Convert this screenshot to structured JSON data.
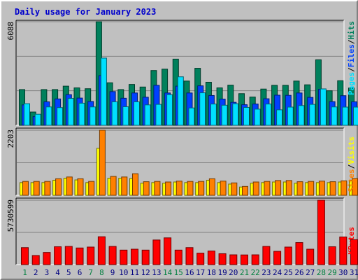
{
  "title": "Daily usage for January 2023",
  "colors": {
    "title": "#0000cc",
    "hits": "#00805c",
    "files": "#0040ff",
    "pages": "#00e0ff",
    "visits": "#ffff00",
    "sites": "#ff8000",
    "kbytes": "#ff0000",
    "weekday_label": "#000080",
    "weekend_label": "#008040",
    "grid": "#808080",
    "panel_bg": "#c0c0c0"
  },
  "side_labels": {
    "pages": "Pages",
    "files": "Files",
    "hits": "Hits",
    "sep": "/",
    "sites": "Sites",
    "visits": "Visits",
    "kbytes": "KBytes"
  },
  "chart_data": [
    {
      "type": "bar",
      "name": "hits-files-pages",
      "max_label": "6088",
      "ylim": [
        0,
        6088
      ],
      "categories": [
        "1",
        "2",
        "3",
        "4",
        "5",
        "6",
        "7",
        "8",
        "9",
        "10",
        "11",
        "12",
        "13",
        "14",
        "15",
        "16",
        "17",
        "18",
        "19",
        "20",
        "21",
        "22",
        "23",
        "24",
        "25",
        "26",
        "27",
        "28",
        "29",
        "30",
        "31"
      ],
      "weekend_days": [
        "1",
        "7",
        "8",
        "14",
        "15",
        "21",
        "22",
        "28",
        "29"
      ],
      "series": [
        {
          "name": "Hits",
          "values": [
            2100,
            780,
            2100,
            2100,
            2300,
            2200,
            2150,
            6088,
            2500,
            2100,
            2400,
            2250,
            3220,
            3300,
            3890,
            2600,
            3350,
            2530,
            2200,
            2360,
            1860,
            1660,
            2130,
            2350,
            2350,
            2600,
            2380,
            3850,
            2030,
            2620,
            2190
          ]
        },
        {
          "name": "Files",
          "values": [
            1200,
            510,
            1380,
            1550,
            1800,
            1600,
            1400,
            2920,
            1980,
            1590,
            1900,
            1650,
            2350,
            1900,
            2300,
            1900,
            2320,
            1750,
            1540,
            1350,
            1210,
            1250,
            1560,
            1770,
            1760,
            1900,
            1640,
            2110,
            1390,
            1740,
            1380
          ]
        },
        {
          "name": "Pages",
          "values": [
            1270,
            650,
            1080,
            1040,
            1580,
            1300,
            1080,
            3950,
            1380,
            1090,
            1380,
            1200,
            1230,
            1800,
            2850,
            1020,
            1910,
            1250,
            1180,
            1270,
            1050,
            950,
            1250,
            910,
            1070,
            1160,
            1230,
            2140,
            1080,
            1070,
            1070
          ]
        }
      ]
    },
    {
      "type": "bar",
      "name": "visits-sites",
      "max_label": "2203",
      "ylim": [
        0,
        2203
      ],
      "categories": [
        "1",
        "2",
        "3",
        "4",
        "5",
        "6",
        "7",
        "8",
        "9",
        "10",
        "11",
        "12",
        "13",
        "14",
        "15",
        "16",
        "17",
        "18",
        "19",
        "20",
        "21",
        "22",
        "23",
        "24",
        "25",
        "26",
        "27",
        "28",
        "29",
        "30",
        "31"
      ],
      "series": [
        {
          "name": "Visits",
          "values": [
            430,
            430,
            430,
            510,
            580,
            520,
            430,
            1590,
            580,
            580,
            570,
            410,
            430,
            410,
            450,
            430,
            430,
            510,
            430,
            380,
            280,
            410,
            430,
            450,
            450,
            410,
            430,
            430,
            430,
            450,
            510
          ]
        },
        {
          "name": "Sites",
          "values": [
            470,
            470,
            470,
            560,
            620,
            560,
            470,
            2203,
            640,
            620,
            730,
            460,
            470,
            450,
            480,
            470,
            470,
            560,
            480,
            420,
            300,
            450,
            470,
            500,
            500,
            460,
            470,
            480,
            460,
            490,
            570
          ]
        }
      ]
    },
    {
      "type": "bar",
      "name": "kbytes",
      "max_label": "5730599",
      "ylim": [
        0,
        5730599
      ],
      "categories": [
        "1",
        "2",
        "3",
        "4",
        "5",
        "6",
        "7",
        "8",
        "9",
        "10",
        "11",
        "12",
        "13",
        "14",
        "15",
        "16",
        "17",
        "18",
        "19",
        "20",
        "21",
        "22",
        "23",
        "24",
        "25",
        "26",
        "27",
        "28",
        "29",
        "30",
        "31"
      ],
      "series": [
        {
          "name": "KBytes",
          "values": [
            1510000,
            810000,
            1080000,
            1590000,
            1620000,
            1480000,
            1560000,
            2480000,
            1620000,
            1290000,
            1370000,
            1290000,
            2190000,
            2380000,
            1290000,
            1510000,
            1020000,
            1210000,
            970000,
            870000,
            860000,
            870000,
            1620000,
            1180000,
            1560000,
            1960000,
            1370000,
            5730599,
            1590000,
            2460000,
            2220000
          ]
        }
      ]
    }
  ]
}
